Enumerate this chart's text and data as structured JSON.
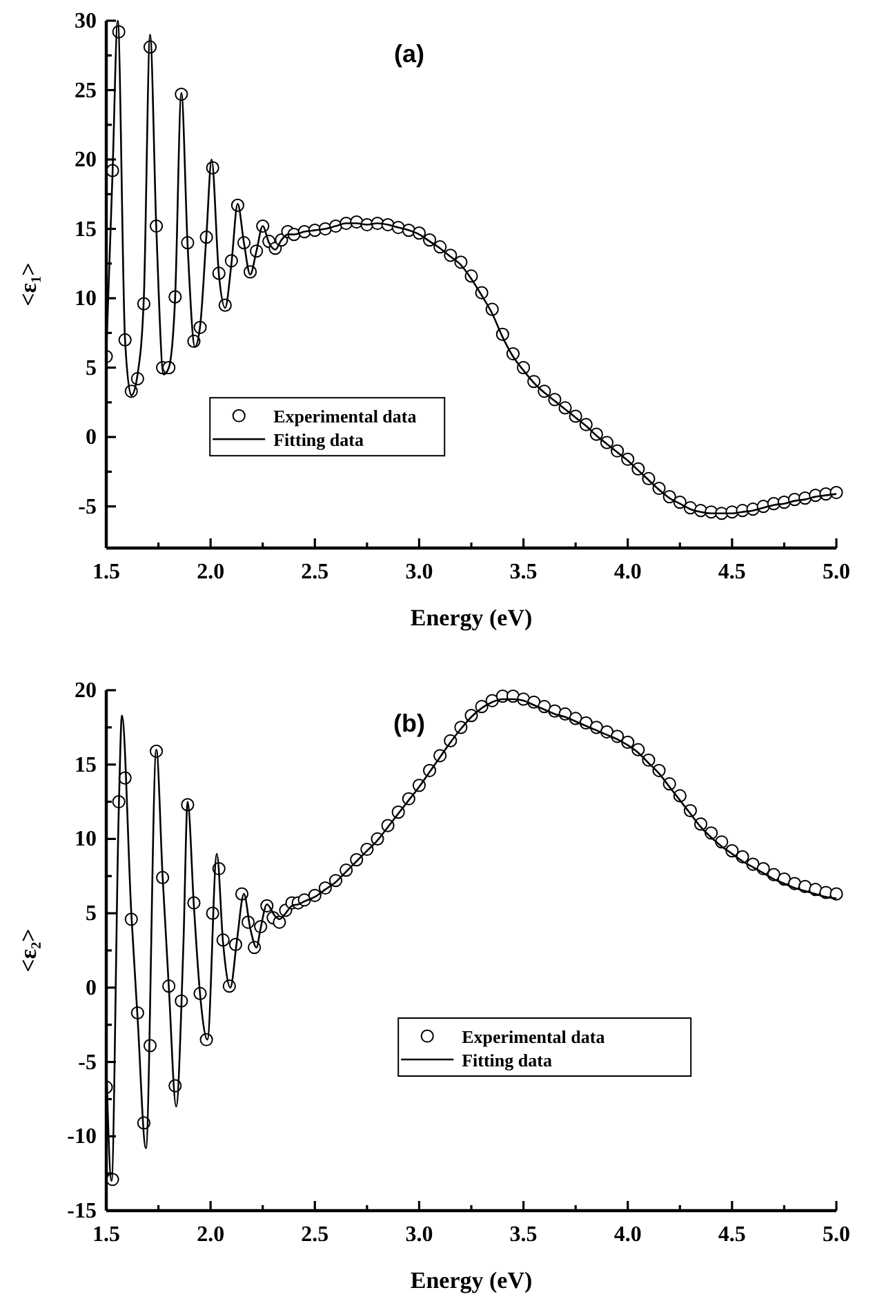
{
  "chart_data": [
    {
      "type": "scatter",
      "title": "(a)",
      "xlabel": "Energy (eV)",
      "ylabel": "<ε₁>",
      "xlim": [
        1.5,
        5.0
      ],
      "ylim": [
        -8,
        30
      ],
      "xticks": [
        1.5,
        {
          "value": 1.75,
          "label": null
        },
        {
          "value": 2,
          "label": "2.0"
        },
        {
          "value": 2.25,
          "label": null
        },
        2.5,
        {
          "value": 2.75,
          "label": null
        },
        {
          "value": 3,
          "label": "3.0"
        },
        {
          "value": 3.25,
          "label": null
        },
        3.5,
        {
          "value": 3.75,
          "label": null
        },
        {
          "value": 4,
          "label": "4.0"
        },
        {
          "value": 4.25,
          "label": null
        },
        4.5,
        {
          "value": 4.75,
          "label": null
        },
        {
          "value": 5,
          "label": "5.0"
        }
      ],
      "yticks": [
        -5,
        {
          "value": -2.5,
          "label": null
        },
        0,
        {
          "value": 2.5,
          "label": null
        },
        5,
        {
          "value": 7.5,
          "label": null
        },
        10,
        {
          "value": 12.5,
          "label": null
        },
        15,
        {
          "value": 17.5,
          "label": null
        },
        20,
        {
          "value": 22.5,
          "label": null
        },
        25,
        {
          "value": 27.5,
          "label": null
        },
        30
      ],
      "legend": "center left",
      "series": [
        {
          "name": "Experimental data",
          "type": "scatter",
          "marker": "circle",
          "color": "#000000",
          "x": [
            1.5,
            1.53,
            1.56,
            1.59,
            1.62,
            1.65,
            1.68,
            1.71,
            1.74,
            1.77,
            1.8,
            1.83,
            1.86,
            1.89,
            1.92,
            1.95,
            1.98,
            2.01,
            2.04,
            2.07,
            2.1,
            2.13,
            2.16,
            2.19,
            2.22,
            2.25,
            2.28,
            2.31,
            2.34,
            2.37,
            2.4,
            2.45,
            2.5,
            2.55,
            2.6,
            2.65,
            2.7,
            2.75,
            2.8,
            2.85,
            2.9,
            2.95,
            3.0,
            3.05,
            3.1,
            3.15,
            3.2,
            3.25,
            3.3,
            3.35,
            3.4,
            3.45,
            3.5,
            3.55,
            3.6,
            3.65,
            3.7,
            3.75,
            3.8,
            3.85,
            3.9,
            3.95,
            4.0,
            4.05,
            4.1,
            4.15,
            4.2,
            4.25,
            4.3,
            4.35,
            4.4,
            4.45,
            4.5,
            4.55,
            4.6,
            4.65,
            4.7,
            4.75,
            4.8,
            4.85,
            4.9,
            4.95,
            5.0
          ],
          "values": [
            5.8,
            19.2,
            29.2,
            7.0,
            3.3,
            4.2,
            9.6,
            28.1,
            15.2,
            5.0,
            5.0,
            10.1,
            24.7,
            14.0,
            6.9,
            7.9,
            14.4,
            19.4,
            11.8,
            9.5,
            12.7,
            16.7,
            14.0,
            11.9,
            13.4,
            15.2,
            14.1,
            13.6,
            14.2,
            14.8,
            14.6,
            14.8,
            14.9,
            15.0,
            15.2,
            15.4,
            15.5,
            15.3,
            15.4,
            15.3,
            15.1,
            14.9,
            14.7,
            14.2,
            13.7,
            13.1,
            12.6,
            11.6,
            10.4,
            9.2,
            7.4,
            6.0,
            5.0,
            4.0,
            3.3,
            2.7,
            2.1,
            1.5,
            0.9,
            0.2,
            -0.4,
            -1.0,
            -1.6,
            -2.3,
            -3.0,
            -3.7,
            -4.3,
            -4.7,
            -5.1,
            -5.3,
            -5.4,
            -5.5,
            -5.4,
            -5.3,
            -5.2,
            -5.0,
            -4.8,
            -4.7,
            -4.5,
            -4.4,
            -4.2,
            -4.1,
            -4.0
          ]
        },
        {
          "name": "Fitting data",
          "type": "line",
          "line_style": "solid",
          "color": "#000000",
          "x": [
            1.5,
            1.53,
            1.555,
            1.59,
            1.62,
            1.65,
            1.68,
            1.71,
            1.74,
            1.775,
            1.8,
            1.83,
            1.86,
            1.89,
            1.925,
            1.95,
            1.98,
            2.005,
            2.04,
            2.07,
            2.1,
            2.13,
            2.16,
            2.19,
            2.22,
            2.25,
            2.28,
            2.31,
            2.34,
            2.37,
            2.4,
            2.45,
            2.5,
            2.55,
            2.6,
            2.65,
            2.7,
            2.75,
            2.8,
            2.85,
            2.9,
            2.95,
            3.0,
            3.05,
            3.1,
            3.15,
            3.2,
            3.25,
            3.3,
            3.35,
            3.4,
            3.45,
            3.5,
            3.55,
            3.6,
            3.65,
            3.7,
            3.75,
            3.8,
            3.85,
            3.9,
            3.95,
            4.0,
            4.05,
            4.1,
            4.15,
            4.2,
            4.25,
            4.3,
            4.35,
            4.4,
            4.45,
            4.5,
            4.55,
            4.6,
            4.65,
            4.7,
            4.75,
            4.8,
            4.85,
            4.9,
            4.95,
            5.0
          ],
          "values": [
            6.0,
            19.0,
            30.0,
            7.0,
            3.0,
            4.5,
            10.0,
            29.0,
            15.0,
            4.5,
            5.0,
            10.0,
            24.8,
            13.8,
            6.5,
            8.0,
            14.5,
            20.0,
            11.7,
            9.3,
            12.5,
            16.8,
            14.0,
            11.7,
            13.4,
            15.2,
            14.0,
            13.5,
            14.2,
            14.6,
            14.6,
            14.8,
            14.9,
            15.0,
            15.2,
            15.4,
            15.4,
            15.3,
            15.4,
            15.3,
            15.1,
            14.9,
            14.6,
            14.1,
            13.6,
            13.0,
            12.4,
            11.4,
            10.2,
            8.9,
            7.2,
            5.8,
            4.8,
            3.9,
            3.2,
            2.6,
            2.0,
            1.4,
            0.8,
            0.1,
            -0.5,
            -1.1,
            -1.7,
            -2.4,
            -3.1,
            -3.8,
            -4.4,
            -4.8,
            -5.2,
            -5.4,
            -5.5,
            -5.5,
            -5.5,
            -5.4,
            -5.3,
            -5.1,
            -4.9,
            -4.8,
            -4.6,
            -4.5,
            -4.3,
            -4.2,
            -4.1
          ]
        }
      ]
    },
    {
      "type": "scatter",
      "title": "(b)",
      "xlabel": "Energy (eV)",
      "ylabel": "<ε₂>",
      "xlim": [
        1.5,
        5.0
      ],
      "ylim": [
        -15,
        20
      ],
      "xticks": [
        1.5,
        {
          "value": 1.75,
          "label": null
        },
        {
          "value": 2,
          "label": "2.0"
        },
        {
          "value": 2.25,
          "label": null
        },
        2.5,
        {
          "value": 2.75,
          "label": null
        },
        {
          "value": 3,
          "label": "3.0"
        },
        {
          "value": 3.25,
          "label": null
        },
        3.5,
        {
          "value": 3.75,
          "label": null
        },
        {
          "value": 4,
          "label": "4.0"
        },
        {
          "value": 4.25,
          "label": null
        },
        4.5,
        {
          "value": 4.75,
          "label": null
        },
        {
          "value": 5,
          "label": "5.0"
        }
      ],
      "yticks": [
        -15,
        {
          "value": -12.5,
          "label": null
        },
        -10,
        {
          "value": -7.5,
          "label": null
        },
        -5,
        {
          "value": -2.5,
          "label": null
        },
        0,
        {
          "value": 2.5,
          "label": null
        },
        5,
        {
          "value": 7.5,
          "label": null
        },
        10,
        {
          "value": 12.5,
          "label": null
        },
        15,
        {
          "value": 17.5,
          "label": null
        },
        20
      ],
      "legend": "center",
      "series": [
        {
          "name": "Experimental data",
          "type": "scatter",
          "marker": "circle",
          "color": "#000000",
          "x": [
            1.5,
            1.53,
            1.56,
            1.59,
            1.62,
            1.65,
            1.68,
            1.71,
            1.74,
            1.77,
            1.8,
            1.83,
            1.86,
            1.89,
            1.92,
            1.95,
            1.98,
            2.01,
            2.04,
            2.06,
            2.09,
            2.12,
            2.15,
            2.18,
            2.21,
            2.24,
            2.27,
            2.3,
            2.33,
            2.36,
            2.39,
            2.42,
            2.45,
            2.5,
            2.55,
            2.6,
            2.65,
            2.7,
            2.75,
            2.8,
            2.85,
            2.9,
            2.95,
            3.0,
            3.05,
            3.1,
            3.15,
            3.2,
            3.25,
            3.3,
            3.35,
            3.4,
            3.45,
            3.5,
            3.55,
            3.6,
            3.65,
            3.7,
            3.75,
            3.8,
            3.85,
            3.9,
            3.95,
            4.0,
            4.05,
            4.1,
            4.15,
            4.2,
            4.25,
            4.3,
            4.35,
            4.4,
            4.45,
            4.5,
            4.55,
            4.6,
            4.65,
            4.7,
            4.75,
            4.8,
            4.85,
            4.9,
            4.95,
            5.0
          ],
          "values": [
            -6.7,
            -12.9,
            12.5,
            14.1,
            4.6,
            -1.7,
            -9.1,
            -3.9,
            15.9,
            7.4,
            0.1,
            -6.6,
            -0.9,
            12.3,
            5.7,
            -0.4,
            -3.5,
            5.0,
            8.0,
            3.2,
            0.1,
            2.9,
            6.3,
            4.4,
            2.7,
            4.1,
            5.5,
            4.7,
            4.4,
            5.2,
            5.7,
            5.7,
            5.9,
            6.2,
            6.7,
            7.2,
            7.9,
            8.6,
            9.3,
            10.0,
            10.9,
            11.8,
            12.7,
            13.6,
            14.6,
            15.6,
            16.6,
            17.5,
            18.3,
            18.9,
            19.3,
            19.6,
            19.6,
            19.4,
            19.2,
            18.9,
            18.6,
            18.4,
            18.1,
            17.8,
            17.5,
            17.2,
            16.9,
            16.5,
            16.0,
            15.3,
            14.6,
            13.7,
            12.9,
            11.9,
            11.0,
            10.4,
            9.8,
            9.2,
            8.8,
            8.3,
            8.0,
            7.6,
            7.3,
            7.0,
            6.8,
            6.6,
            6.4,
            6.3
          ]
        },
        {
          "name": "Fitting data",
          "type": "line",
          "line_style": "solid",
          "color": "#000000",
          "x": [
            1.5,
            1.525,
            1.56,
            1.575,
            1.62,
            1.65,
            1.69,
            1.74,
            1.77,
            1.8,
            1.835,
            1.87,
            1.89,
            1.92,
            1.95,
            1.985,
            2.03,
            2.06,
            2.095,
            2.125,
            2.16,
            2.19,
            2.22,
            2.24,
            2.27,
            2.31,
            2.33,
            2.36,
            2.39,
            2.42,
            2.45,
            2.5,
            2.55,
            2.6,
            2.65,
            2.7,
            2.75,
            2.8,
            2.85,
            2.9,
            2.95,
            3.0,
            3.05,
            3.1,
            3.15,
            3.2,
            3.25,
            3.3,
            3.35,
            3.4,
            3.45,
            3.5,
            3.55,
            3.6,
            3.65,
            3.7,
            3.75,
            3.8,
            3.85,
            3.9,
            3.95,
            4.0,
            4.05,
            4.1,
            4.15,
            4.2,
            4.25,
            4.3,
            4.35,
            4.4,
            4.45,
            4.5,
            4.55,
            4.6,
            4.65,
            4.7,
            4.75,
            4.8,
            4.85,
            4.9,
            4.95,
            5.0
          ],
          "values": [
            -5.0,
            -13.0,
            12.0,
            18.3,
            5.0,
            -2.0,
            -10.8,
            16.0,
            7.5,
            0.0,
            -8.0,
            3.0,
            12.5,
            5.5,
            -0.5,
            -3.5,
            9.0,
            3.0,
            0.0,
            3.0,
            6.3,
            4.0,
            2.7,
            4.0,
            5.6,
            4.8,
            4.6,
            5.0,
            5.5,
            5.6,
            5.8,
            6.1,
            6.6,
            7.1,
            7.8,
            8.5,
            9.2,
            9.9,
            10.8,
            11.7,
            12.6,
            13.5,
            14.5,
            15.5,
            16.5,
            17.4,
            18.2,
            18.8,
            19.2,
            19.4,
            19.4,
            19.3,
            19.0,
            18.7,
            18.4,
            18.2,
            17.9,
            17.6,
            17.3,
            17.0,
            16.7,
            16.3,
            15.8,
            15.1,
            14.4,
            13.5,
            12.6,
            11.7,
            10.8,
            10.1,
            9.5,
            9.0,
            8.5,
            8.1,
            7.7,
            7.3,
            7.0,
            6.7,
            6.5,
            6.3,
            6.1,
            6.0
          ]
        }
      ]
    }
  ]
}
